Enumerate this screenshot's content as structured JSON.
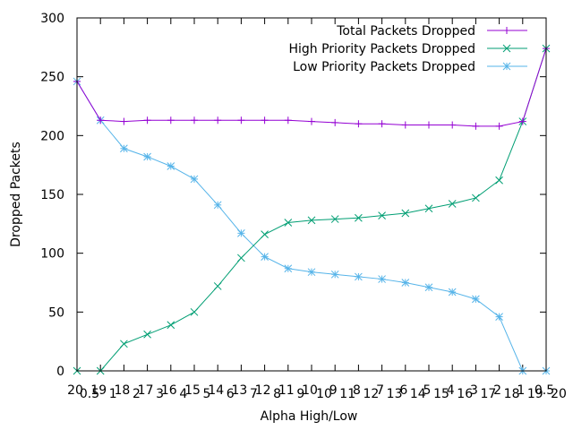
{
  "chart_data": {
    "type": "line",
    "title": "",
    "xlabel": "Alpha High/Low",
    "ylabel": "Dropped Packets",
    "ylim": [
      0,
      300
    ],
    "yticks": [
      0,
      50,
      100,
      150,
      200,
      250,
      300
    ],
    "x_tick_labels": [
      "20",
      "0.5",
      "19",
      "1",
      "18",
      "2",
      "17",
      "3",
      "16",
      "4",
      "15",
      "5",
      "14",
      "6",
      "13",
      "7",
      "12",
      "8",
      "11",
      "9",
      "10",
      "10",
      "9",
      "11",
      "8",
      "12",
      "7",
      "13",
      "6",
      "14",
      "5",
      "15",
      "4",
      "16",
      "3",
      "17",
      "2",
      "18",
      "1",
      "19",
      "0.5",
      "20"
    ],
    "categories": [
      "20/0.5",
      "19/1",
      "18/2",
      "17/3",
      "16/4",
      "15/5",
      "14/6",
      "13/7",
      "12/8",
      "11/9",
      "10/10",
      "9/11",
      "8/12",
      "7/13",
      "6/14",
      "5/15",
      "4/16",
      "3/17",
      "2/18",
      "1/19",
      "0.5/20"
    ],
    "legend_position": "top-right",
    "grid": false,
    "series": [
      {
        "name": "Total Packets Dropped",
        "color": "#9400d3",
        "marker": "plus",
        "values": [
          246,
          213,
          212,
          213,
          213,
          213,
          213,
          213,
          213,
          213,
          212,
          211,
          210,
          210,
          209,
          209,
          209,
          208,
          208,
          212,
          274
        ]
      },
      {
        "name": "High Priority Packets Dropped",
        "color": "#009e73",
        "marker": "cross",
        "values": [
          0,
          0,
          23,
          31,
          39,
          50,
          72,
          96,
          116,
          126,
          128,
          129,
          130,
          132,
          134,
          138,
          142,
          147,
          162,
          212,
          274
        ]
      },
      {
        "name": "Low Priority Packets Dropped",
        "color": "#56b4e9",
        "marker": "star",
        "values": [
          246,
          213,
          189,
          182,
          174,
          163,
          141,
          117,
          97,
          87,
          84,
          82,
          80,
          78,
          75,
          71,
          67,
          61,
          46,
          0,
          0
        ]
      }
    ]
  }
}
